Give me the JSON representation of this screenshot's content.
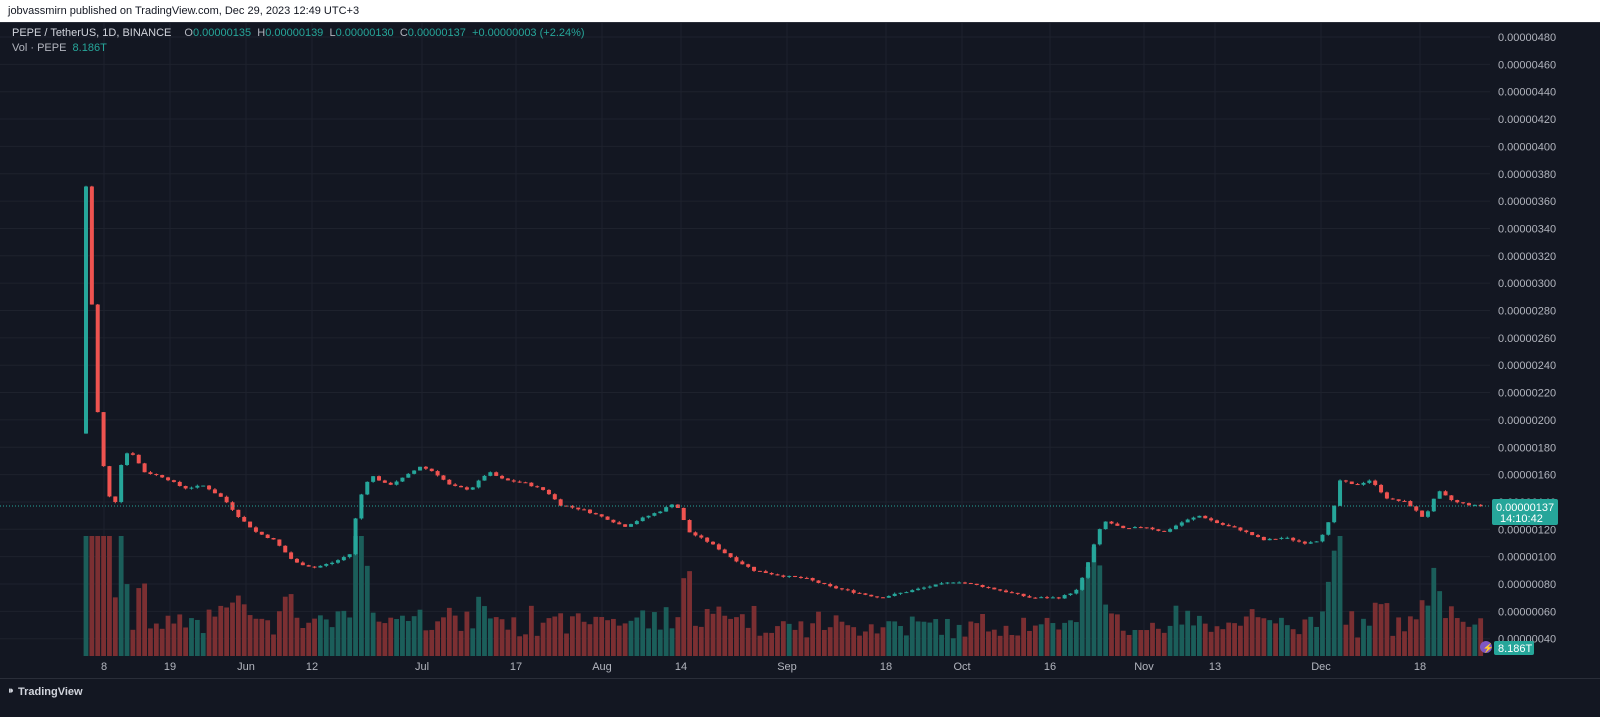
{
  "header": {
    "published": "jobvassmirn published on TradingView.com, Dec 29, 2023 12:49 UTC+3"
  },
  "legend": {
    "symbol": "PEPE / TetherUS, 1D, BINANCE",
    "o_label": "O",
    "o_value": "0.00000135",
    "h_label": "H",
    "h_value": "0.00000139",
    "l_label": "L",
    "l_value": "0.00000130",
    "c_label": "C",
    "c_value": "0.00000137",
    "change": "+0.00000003 (+2.24%)",
    "vol_label": "Vol · PEPE",
    "vol_value": "8.186T"
  },
  "price_label": {
    "price": "0.00000137",
    "countdown": "14:10:42"
  },
  "volume_label": "8.186T",
  "brand": {
    "name": "TradingView"
  },
  "colors": {
    "up": "#26a69a",
    "down": "#ef5350",
    "up_vol": "#1b5e5a",
    "down_vol": "#7b2f32",
    "bg": "#131722",
    "grid": "#1e222d"
  },
  "chart_data": {
    "type": "candlestick",
    "symbol": "PEPE / TetherUS",
    "interval": "1D",
    "exchange": "BINANCE",
    "y_axis_ticks": [
      "0.00000040",
      "0.00000060",
      "0.00000080",
      "0.00000100",
      "0.00000120",
      "0.00000140",
      "0.00000160",
      "0.00000180",
      "0.00000200",
      "0.00000220",
      "0.00000240",
      "0.00000260",
      "0.00000280",
      "0.00000300",
      "0.00000320",
      "0.00000340",
      "0.00000360",
      "0.00000380",
      "0.00000400",
      "0.00000420",
      "0.00000440",
      "0.00000460",
      "0.00000480"
    ],
    "x_axis_ticks": [
      "8",
      "19",
      "Jun",
      "12",
      "Jul",
      "17",
      "Aug",
      "14",
      "Sep",
      "18",
      "Oct",
      "16",
      "Nov",
      "13",
      "Dec",
      "18"
    ],
    "ylim": [
      3.45e-07,
      4.95e-07
    ],
    "last_price": 1.37e-06,
    "grid": true,
    "candles": []
  }
}
